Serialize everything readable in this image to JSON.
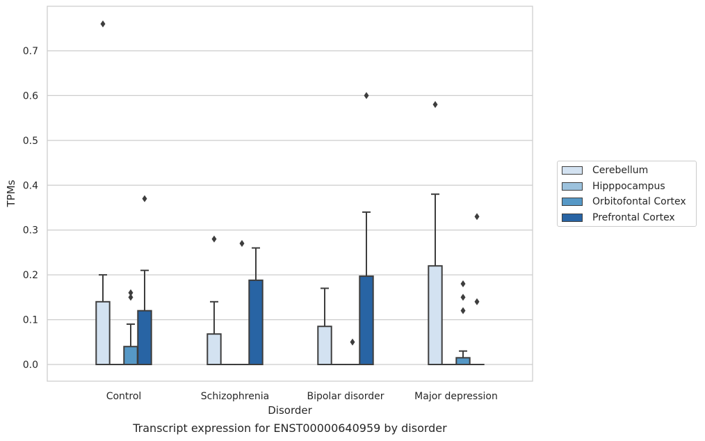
{
  "chart_data": {
    "type": "box",
    "title": "Transcript expression for ENST00000640959 by disorder",
    "xlabel": "Disorder",
    "ylabel": "TPMs",
    "ylim": [
      -0.037,
      0.8
    ],
    "yticks": [
      "0.0",
      "0.1",
      "0.2",
      "0.3",
      "0.4",
      "0.5",
      "0.6",
      "0.7"
    ],
    "categories": [
      "Control",
      "Schizophrenia",
      "Bipolar disorder",
      "Major depression"
    ],
    "grid": "horizontal",
    "legend_position": "right",
    "series": [
      {
        "name": "Cerebellum",
        "color": "#d3e2f1",
        "boxes": [
          {
            "q1": 0,
            "q3": 0.14,
            "median": 0,
            "whisker_low": 0,
            "whisker_high": 0.2,
            "outliers": [
              0.76
            ]
          },
          {
            "q1": 0,
            "q3": 0.068,
            "median": 0,
            "whisker_low": 0,
            "whisker_high": 0.14,
            "outliers": [
              0.28
            ]
          },
          {
            "q1": 0,
            "q3": 0.085,
            "median": 0,
            "whisker_low": 0,
            "whisker_high": 0.17,
            "outliers": []
          },
          {
            "q1": 0,
            "q3": 0.22,
            "median": 0,
            "whisker_low": 0,
            "whisker_high": 0.38,
            "outliers": [
              0.58
            ]
          }
        ]
      },
      {
        "name": "Hipppocampus",
        "color": "#9cc2dd",
        "boxes": [
          {
            "q1": 0,
            "q3": 0,
            "median": 0,
            "whisker_low": 0,
            "whisker_high": 0,
            "outliers": []
          },
          {
            "q1": 0,
            "q3": 0,
            "median": 0,
            "whisker_low": 0,
            "whisker_high": 0,
            "outliers": []
          },
          {
            "q1": 0,
            "q3": 0,
            "median": 0,
            "whisker_low": 0,
            "whisker_high": 0,
            "outliers": []
          },
          {
            "q1": 0,
            "q3": 0,
            "median": 0,
            "whisker_low": 0,
            "whisker_high": 0,
            "outliers": []
          }
        ]
      },
      {
        "name": "Orbitofontal Cortex",
        "color": "#5698c6",
        "boxes": [
          {
            "q1": 0,
            "q3": 0.04,
            "median": 0,
            "whisker_low": 0,
            "whisker_high": 0.09,
            "outliers": [
              0.15,
              0.16
            ]
          },
          {
            "q1": 0,
            "q3": 0,
            "median": 0,
            "whisker_low": 0,
            "whisker_high": 0,
            "outliers": [
              0.27
            ]
          },
          {
            "q1": 0,
            "q3": 0,
            "median": 0,
            "whisker_low": 0,
            "whisker_high": 0,
            "outliers": [
              0.05
            ]
          },
          {
            "q1": 0,
            "q3": 0.015,
            "median": 0,
            "whisker_low": 0,
            "whisker_high": 0.03,
            "outliers": [
              0.12,
              0.15,
              0.18
            ]
          }
        ]
      },
      {
        "name": "Prefrontal Cortex",
        "color": "#2864a4",
        "boxes": [
          {
            "q1": 0,
            "q3": 0.12,
            "median": 0,
            "whisker_low": 0,
            "whisker_high": 0.21,
            "outliers": [
              0.37
            ]
          },
          {
            "q1": 0,
            "q3": 0.188,
            "median": 0,
            "whisker_low": 0,
            "whisker_high": 0.26,
            "outliers": []
          },
          {
            "q1": 0,
            "q3": 0.197,
            "median": 0,
            "whisker_low": 0,
            "whisker_high": 0.34,
            "outliers": [
              0.6
            ]
          },
          {
            "q1": 0,
            "q3": 0,
            "median": 0,
            "whisker_low": 0,
            "whisker_high": 0,
            "outliers": [
              0.14,
              0.33
            ]
          }
        ]
      }
    ]
  }
}
